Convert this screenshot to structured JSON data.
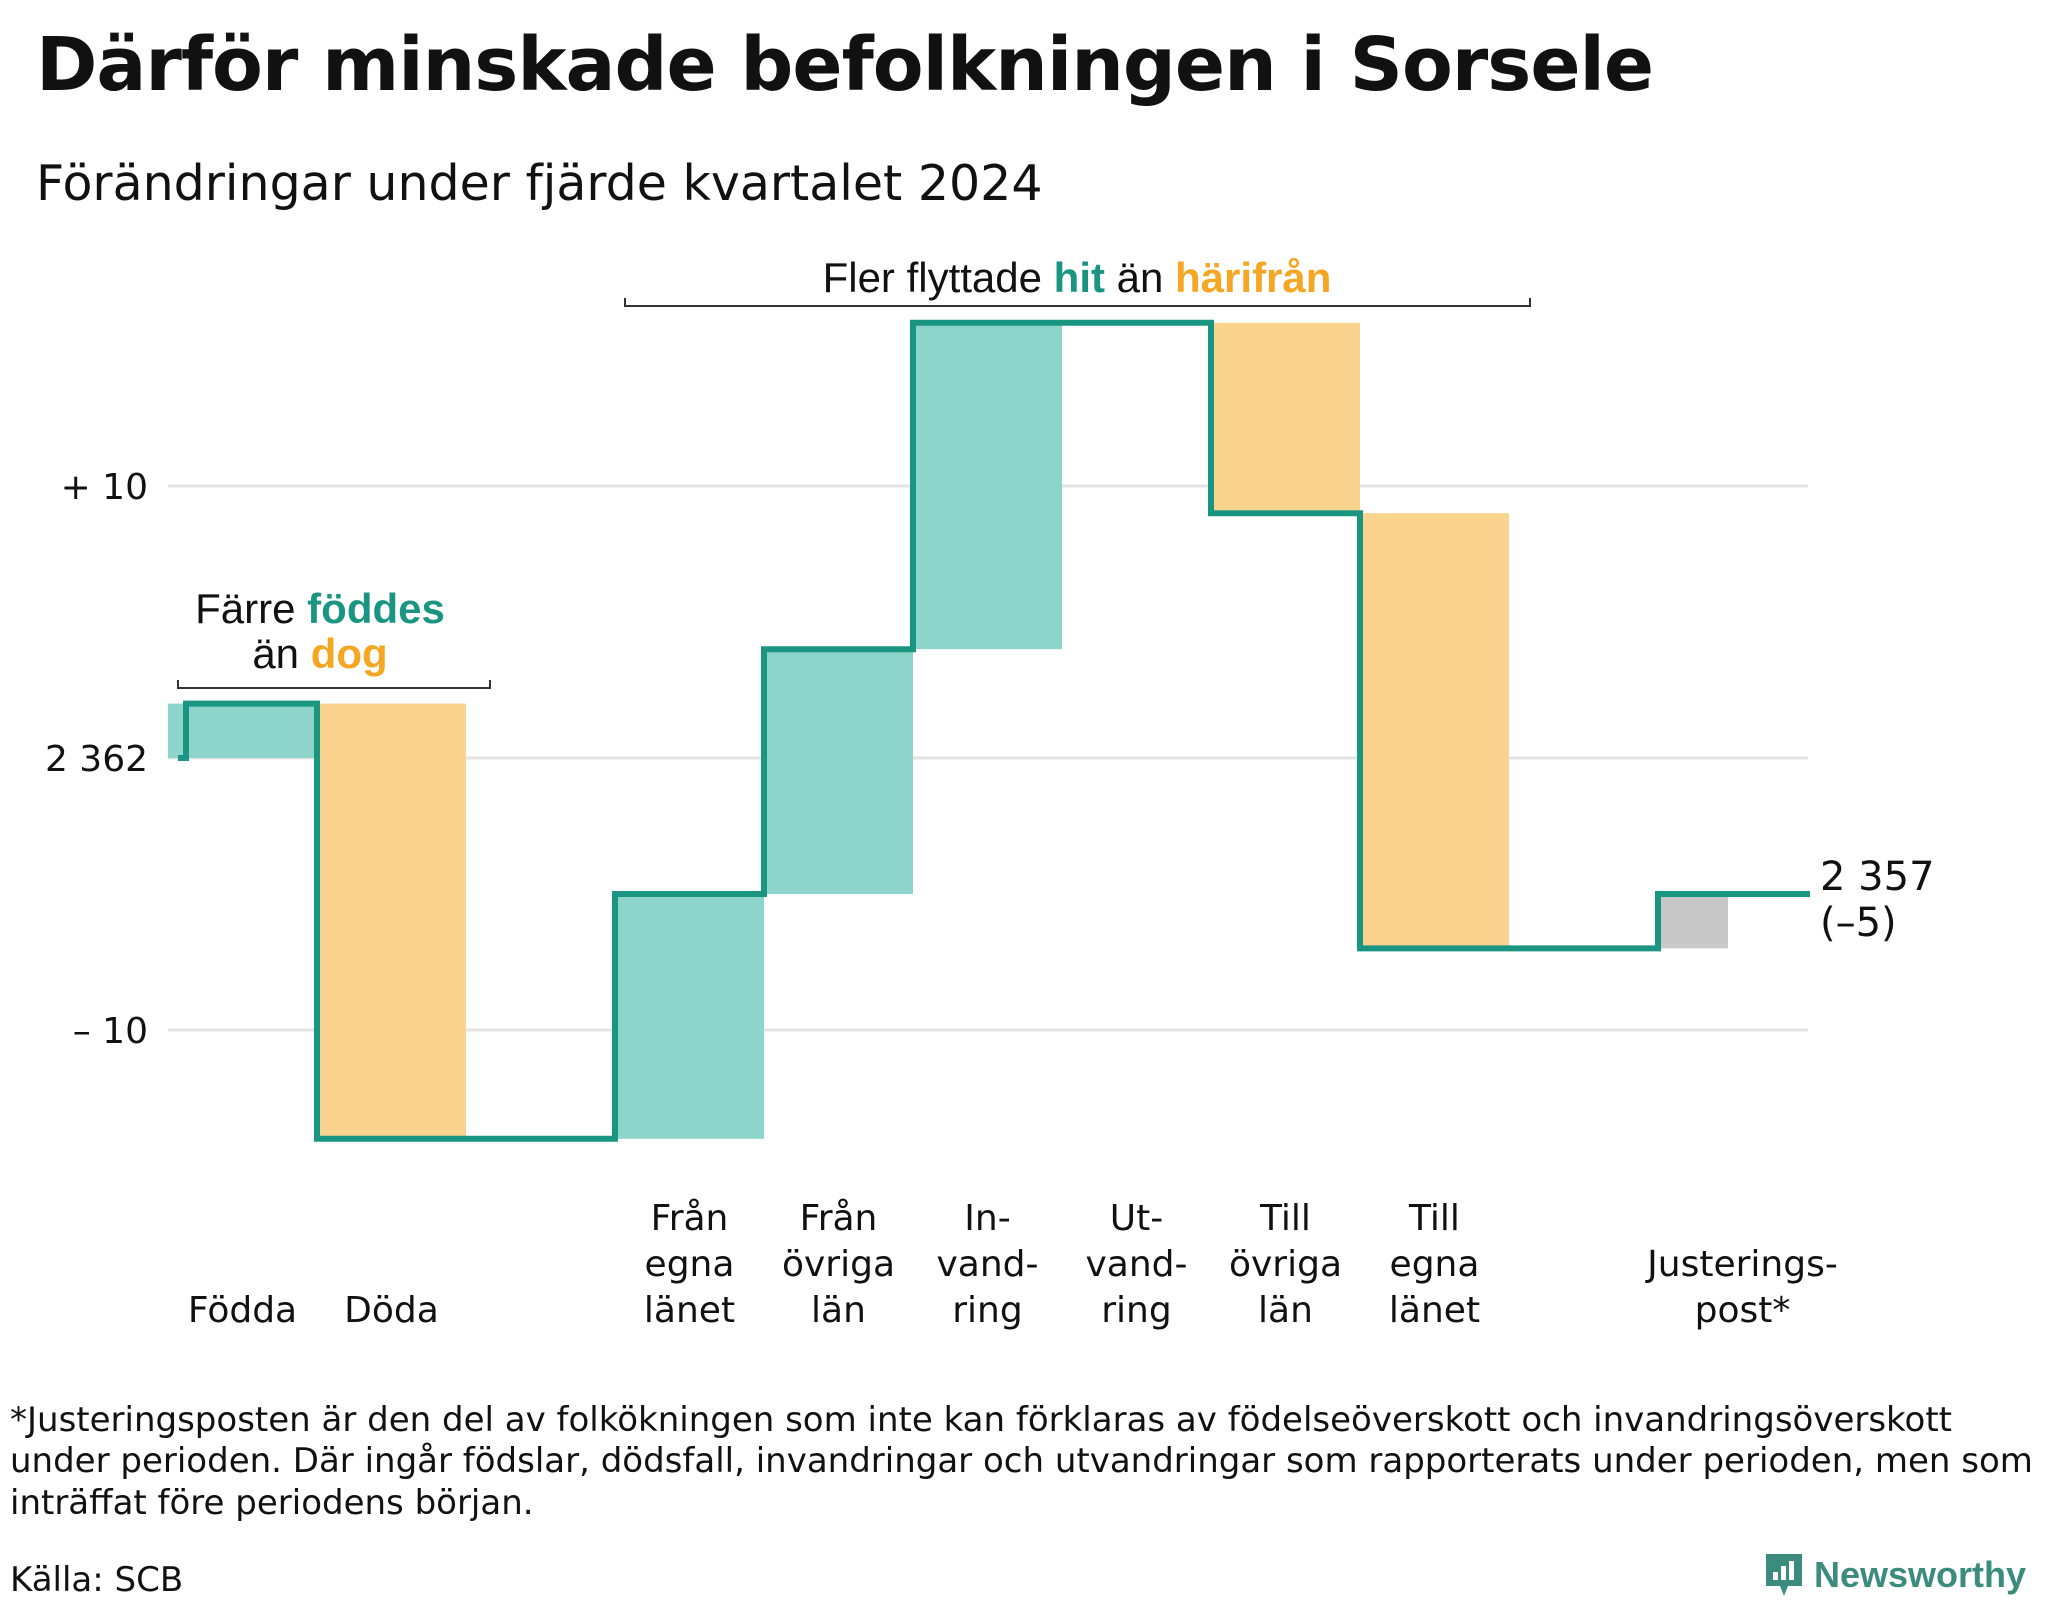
{
  "title": "Därför minskade befolkningen i Sorsele",
  "subtitle": "Förändringar under fjärde kvartalet 2024",
  "chart_data": {
    "type": "waterfall",
    "start_value": 2362,
    "end_value": 2357,
    "end_label_value": "2 357",
    "end_label_change": "(–5)",
    "y_ticks": [
      {
        "value": 10,
        "label": "+ 10"
      },
      {
        "value": 0,
        "label": "2 362"
      },
      {
        "value": -10,
        "label": "– 10"
      }
    ],
    "ylim": [
      -14,
      16
    ],
    "grid": true,
    "colors": {
      "increase": "#8dd4cb",
      "decrease": "#fad48e",
      "adjustment": "#c8c8c8",
      "line": "#1a9582",
      "teal_text": "#1a9582",
      "orange_text": "#f5a623"
    },
    "steps": [
      {
        "category": "Födda",
        "label_lines": [
          "Födda"
        ],
        "value": 2,
        "kind": "increase"
      },
      {
        "category": "Döda",
        "label_lines": [
          "Döda"
        ],
        "value": -16,
        "kind": "decrease"
      },
      {
        "category": "",
        "label_lines": [],
        "value": 0,
        "kind": "none"
      },
      {
        "category": "Från egna länet",
        "label_lines": [
          "Från",
          "egna",
          "länet"
        ],
        "value": 9,
        "kind": "increase"
      },
      {
        "category": "Från övriga län",
        "label_lines": [
          "Från",
          "övriga",
          "län"
        ],
        "value": 9,
        "kind": "increase"
      },
      {
        "category": "Invandring",
        "label_lines": [
          "In-",
          "vand-",
          "ring"
        ],
        "value": 12,
        "kind": "increase"
      },
      {
        "category": "Utvandring",
        "label_lines": [
          "Ut-",
          "vand-",
          "ring"
        ],
        "value": 0,
        "kind": "none"
      },
      {
        "category": "Till övriga län",
        "label_lines": [
          "Till",
          "övriga",
          "län"
        ],
        "value": -7,
        "kind": "decrease"
      },
      {
        "category": "Till egna länet",
        "label_lines": [
          "Till",
          "egna",
          "länet"
        ],
        "value": -16,
        "kind": "decrease"
      },
      {
        "category": "",
        "label_lines": [],
        "value": 0,
        "kind": "none"
      },
      {
        "category": "Justeringspost*",
        "label_lines": [
          "Justerings-",
          "post*"
        ],
        "value": 2,
        "kind": "adjustment"
      }
    ],
    "annotations": [
      {
        "id": "birth",
        "parts": [
          {
            "line": 1,
            "text": "Färre ",
            "color": "plain"
          },
          {
            "line": 1,
            "text": "föddes",
            "color": "teal"
          },
          {
            "line": 2,
            "text": "än ",
            "color": "plain"
          },
          {
            "line": 2,
            "text": "dog",
            "color": "orange"
          }
        ]
      },
      {
        "id": "migration",
        "parts": [
          {
            "line": 1,
            "text": "Fler flyttade ",
            "color": "plain"
          },
          {
            "line": 1,
            "text": "hit",
            "color": "teal"
          },
          {
            "line": 1,
            "text": " än ",
            "color": "plain"
          },
          {
            "line": 1,
            "text": "härifrån",
            "color": "orange"
          }
        ]
      }
    ]
  },
  "footnote": "*Justeringsposten är den del av folkökningen som inte kan förklaras av födelseöverskott och invandringsöverskott under perioden. Där ingår födslar, dödsfall, invandringar och utvandringar som rapporterats under perioden, men som inträffat före periodens början.",
  "source": "Källa: SCB",
  "brand": {
    "name": "Newsworthy",
    "color": "#3c8c7d"
  }
}
